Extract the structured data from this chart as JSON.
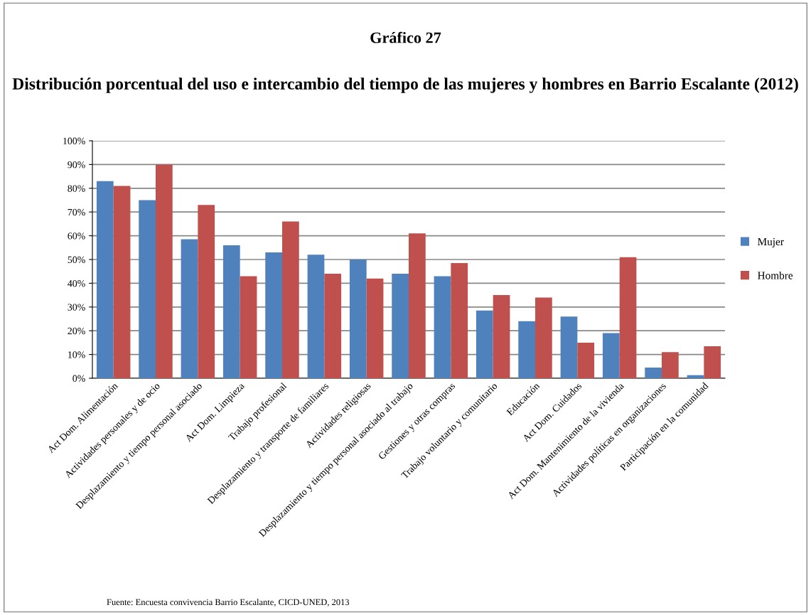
{
  "chart_data": {
    "type": "bar",
    "title": "Gráfico 27",
    "subtitle": "Distribución porcentual del uso e intercambio del tiempo de las mujeres y hombres en Barrio Escalante (2012)",
    "categories": [
      "Act Dom. Alimentación",
      "Actividades personales y de ocio",
      "Desplazamiento y tiempo personal asociado",
      "Act Dom. Limpieza",
      "Trabajo profesional",
      "Desplazamiento y transporte de familiares",
      "Actividades religiosas",
      "Desplazamiento y tiempo personal asociado al trabajo",
      "Gestiones y otras compras",
      "Trabajo voluntario y comunitario",
      "Educación",
      "Act Dom. Cuidados",
      "Act Dom. Mantenimiento de la vivienda",
      "Actividades políticas en organizaciones",
      "Participación en la comunidad"
    ],
    "series": [
      {
        "name": "Mujer",
        "color": "#4f81bd",
        "values": [
          83,
          75,
          58.5,
          56,
          53,
          52,
          50,
          44,
          43,
          28.5,
          24,
          26,
          19,
          4.5,
          1.3
        ]
      },
      {
        "name": "Hombre",
        "color": "#c0504d",
        "values": [
          81,
          90,
          73,
          43,
          66,
          44,
          42,
          61,
          48.5,
          35,
          34,
          15,
          51,
          11,
          13.5
        ]
      }
    ],
    "ylim": [
      0,
      100
    ],
    "yticks": [
      {
        "value": 0,
        "label": "0%"
      },
      {
        "value": 10,
        "label": "10%"
      },
      {
        "value": 20,
        "label": "20%"
      },
      {
        "value": 30,
        "label": "30%"
      },
      {
        "value": 40,
        "label": "40%"
      },
      {
        "value": 50,
        "label": "50%"
      },
      {
        "value": 60,
        "label": "60%"
      },
      {
        "value": 70,
        "label": "70%"
      },
      {
        "value": 80,
        "label": "80%"
      },
      {
        "value": 90,
        "label": "90%"
      },
      {
        "value": 100,
        "label": "100%"
      }
    ],
    "grid": "y",
    "legend": "right",
    "annotations": [
      "Fuente: Encuesta convivencia Barrio Escalante, CICD-UNED, 2013"
    ]
  }
}
